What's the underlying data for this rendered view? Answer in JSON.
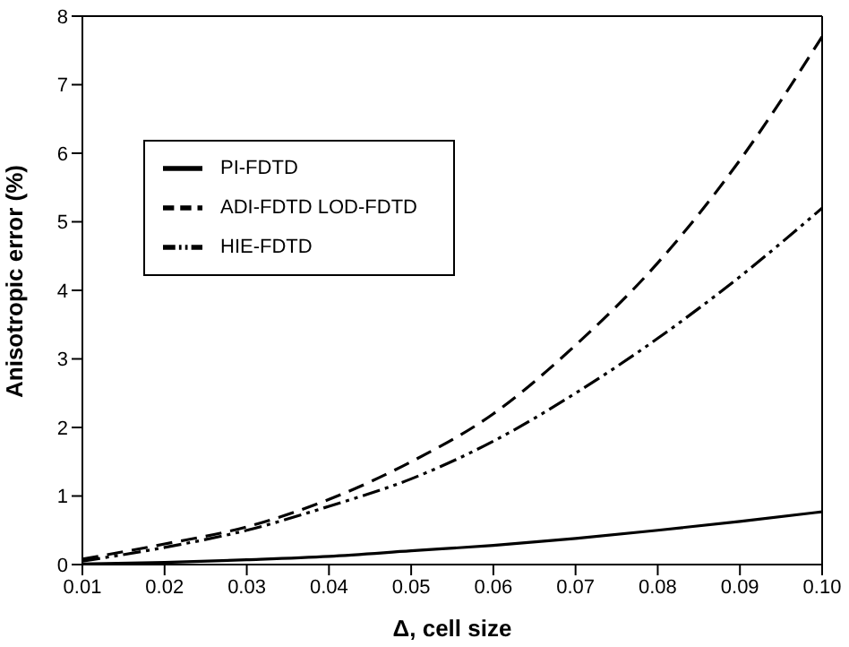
{
  "chart_data": {
    "type": "line",
    "xlabel": "Δ, cell size",
    "ylabel": "Anisotropic error (%)",
    "x": [
      0.01,
      0.02,
      0.03,
      0.04,
      0.05,
      0.06,
      0.07,
      0.08,
      0.09,
      0.1
    ],
    "series": [
      {
        "name": "PI-FDTD",
        "color": "#000000",
        "line_style": "solid",
        "values": [
          0.01,
          0.03,
          0.07,
          0.12,
          0.2,
          0.28,
          0.38,
          0.5,
          0.63,
          0.77
        ]
      },
      {
        "name": "ADI-FDTD  LOD-FDTD",
        "color": "#000000",
        "line_style": "dashed",
        "values": [
          0.08,
          0.3,
          0.55,
          0.95,
          1.5,
          2.2,
          3.2,
          4.4,
          5.9,
          7.7
        ]
      },
      {
        "name": "HIE-FDTD",
        "color": "#000000",
        "line_style": "dashdot",
        "values": [
          0.05,
          0.25,
          0.5,
          0.85,
          1.25,
          1.8,
          2.5,
          3.3,
          4.2,
          5.2
        ]
      }
    ],
    "xlim": [
      0.01,
      0.1
    ],
    "xticks": [
      0.01,
      0.02,
      0.03,
      0.04,
      0.05,
      0.06,
      0.07,
      0.08,
      0.09,
      {
        "value": 0.1,
        "label": "0.10"
      }
    ],
    "ylim": [
      0,
      8
    ],
    "yticks": [
      0,
      1,
      2,
      3,
      4,
      5,
      6,
      7,
      8
    ],
    "grid": false,
    "legend": "top left",
    "marker": "none"
  }
}
